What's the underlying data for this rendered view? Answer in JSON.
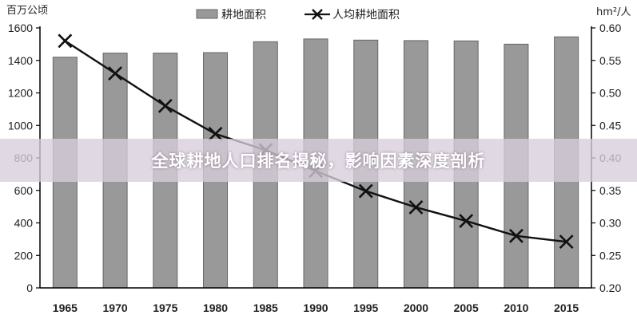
{
  "banner": {
    "text": "全球耕地人口排名揭秘，影响因素深度剖析"
  },
  "colors": {
    "bar": "#999999",
    "bar_edge": "#666666",
    "line": "#111111",
    "axis": "#000000"
  },
  "chart_data": {
    "type": "bar+line",
    "categories": [
      "1965",
      "1970",
      "1975",
      "1980",
      "1985",
      "1990",
      "1995",
      "2000",
      "2005",
      "2010",
      "2015"
    ],
    "series": [
      {
        "name": "耕地面积",
        "type": "bar",
        "axis": "left",
        "values": [
          1420,
          1445,
          1445,
          1448,
          1515,
          1532,
          1525,
          1522,
          1520,
          1500,
          1545
        ]
      },
      {
        "name": "人均耕地面积",
        "type": "line",
        "marker": "x",
        "axis": "right",
        "values": [
          0.58,
          0.53,
          0.48,
          0.437,
          0.412,
          0.38,
          0.349,
          0.324,
          0.303,
          0.28,
          0.271
        ]
      }
    ],
    "left_axis": {
      "unit": "百万公顷",
      "ylim": [
        0,
        1600
      ],
      "ticks": [
        "0",
        "200",
        "400",
        "600",
        "800",
        "1000",
        "1200",
        "1400",
        "1600"
      ]
    },
    "right_axis": {
      "unit": "hm²/人",
      "ylim": [
        0.2,
        0.6
      ],
      "ticks": [
        "0.20",
        "0.25",
        "0.30",
        "0.35",
        "0.40",
        "0.45",
        "0.50",
        "0.55",
        "0.60"
      ]
    },
    "legend": {
      "placement": "top-center"
    },
    "grid": false
  }
}
